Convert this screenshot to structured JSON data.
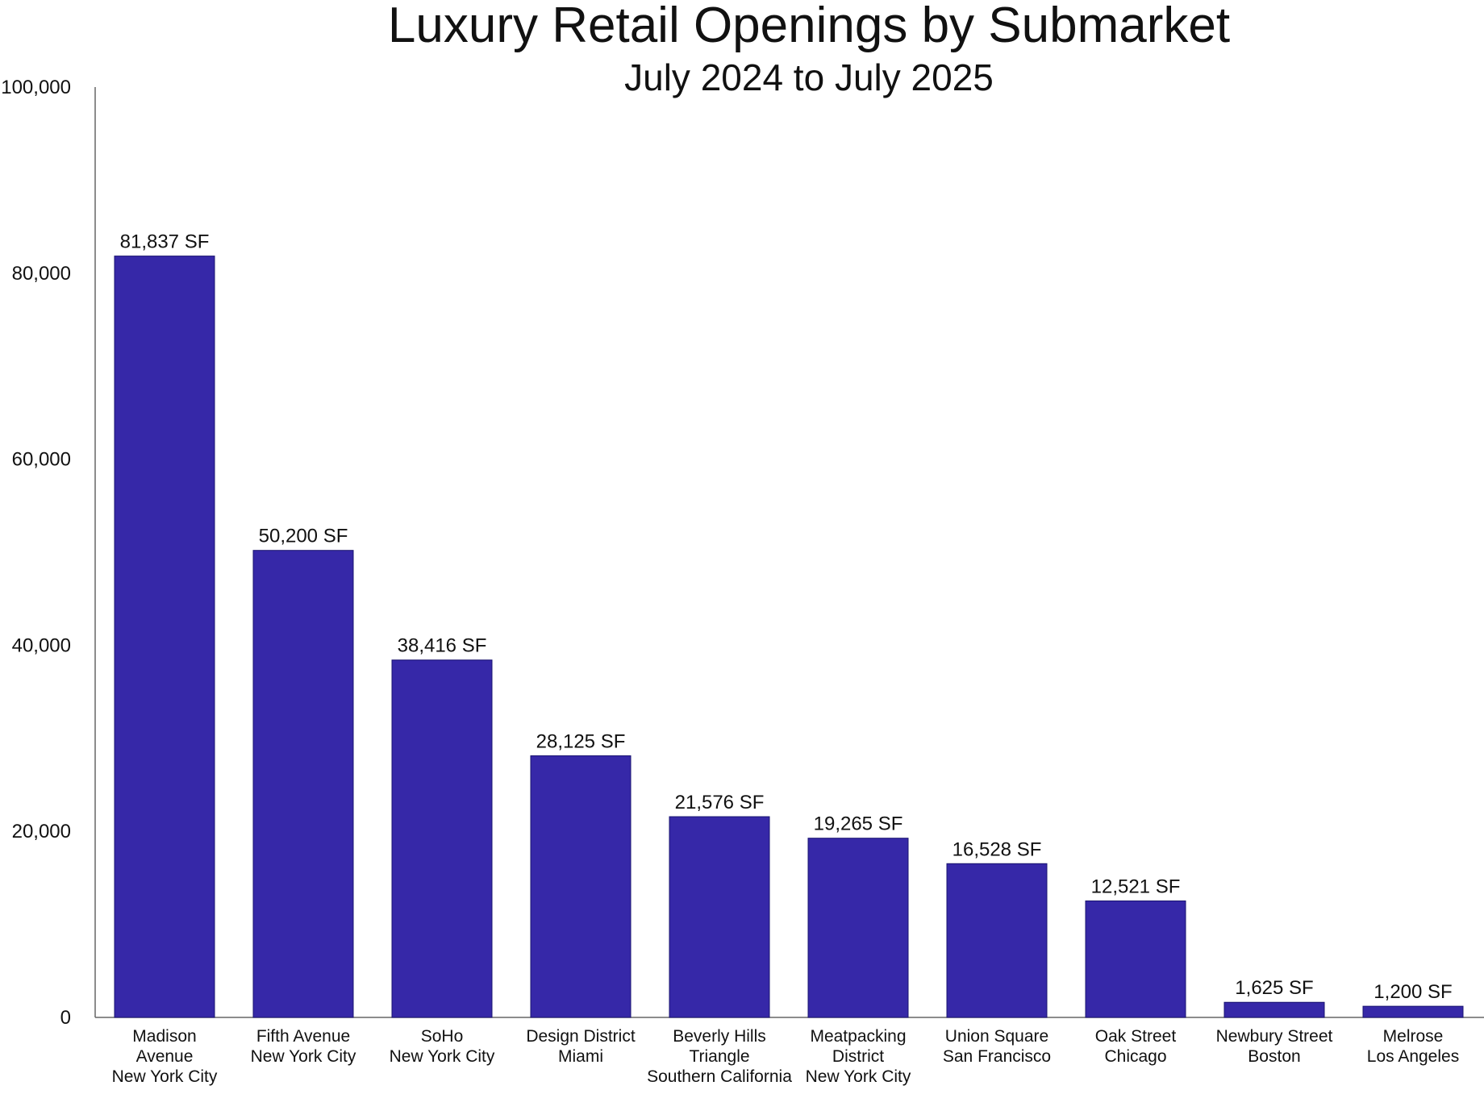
{
  "chart_data": {
    "type": "bar",
    "title": "Luxury Retail Openings by Submarket",
    "subtitle": "July 2024 to July 2025",
    "xlabel": "",
    "ylabel": "",
    "ylim": [
      0,
      100000
    ],
    "yticks": [
      0,
      20000,
      40000,
      60000,
      80000,
      100000
    ],
    "ytick_labels": [
      "0",
      "20,000",
      "40,000",
      "60,000",
      "80,000",
      "100,000"
    ],
    "grid": false,
    "bar_color": "#3628a8",
    "categories": [
      [
        "Madison",
        "Avenue",
        "New York City"
      ],
      [
        "Fifth Avenue",
        "New York City"
      ],
      [
        "SoHo",
        "New York City"
      ],
      [
        "Design District",
        "Miami"
      ],
      [
        "Beverly Hills",
        "Triangle",
        "Southern California"
      ],
      [
        "Meatpacking",
        "District",
        "New York City"
      ],
      [
        "Union Square",
        "San Francisco"
      ],
      [
        "Oak Street",
        "Chicago"
      ],
      [
        "Newbury Street",
        "Boston"
      ],
      [
        "Melrose",
        "Los Angeles"
      ]
    ],
    "values": [
      81837,
      50200,
      38416,
      28125,
      21576,
      19265,
      16528,
      12521,
      1625,
      1200
    ],
    "data_labels": [
      "81,837 SF",
      "50,200 SF",
      "38,416 SF",
      "28,125 SF",
      "21,576 SF",
      "19,265 SF",
      "16,528 SF",
      "12,521 SF",
      "1,625 SF",
      "1,200 SF"
    ]
  }
}
